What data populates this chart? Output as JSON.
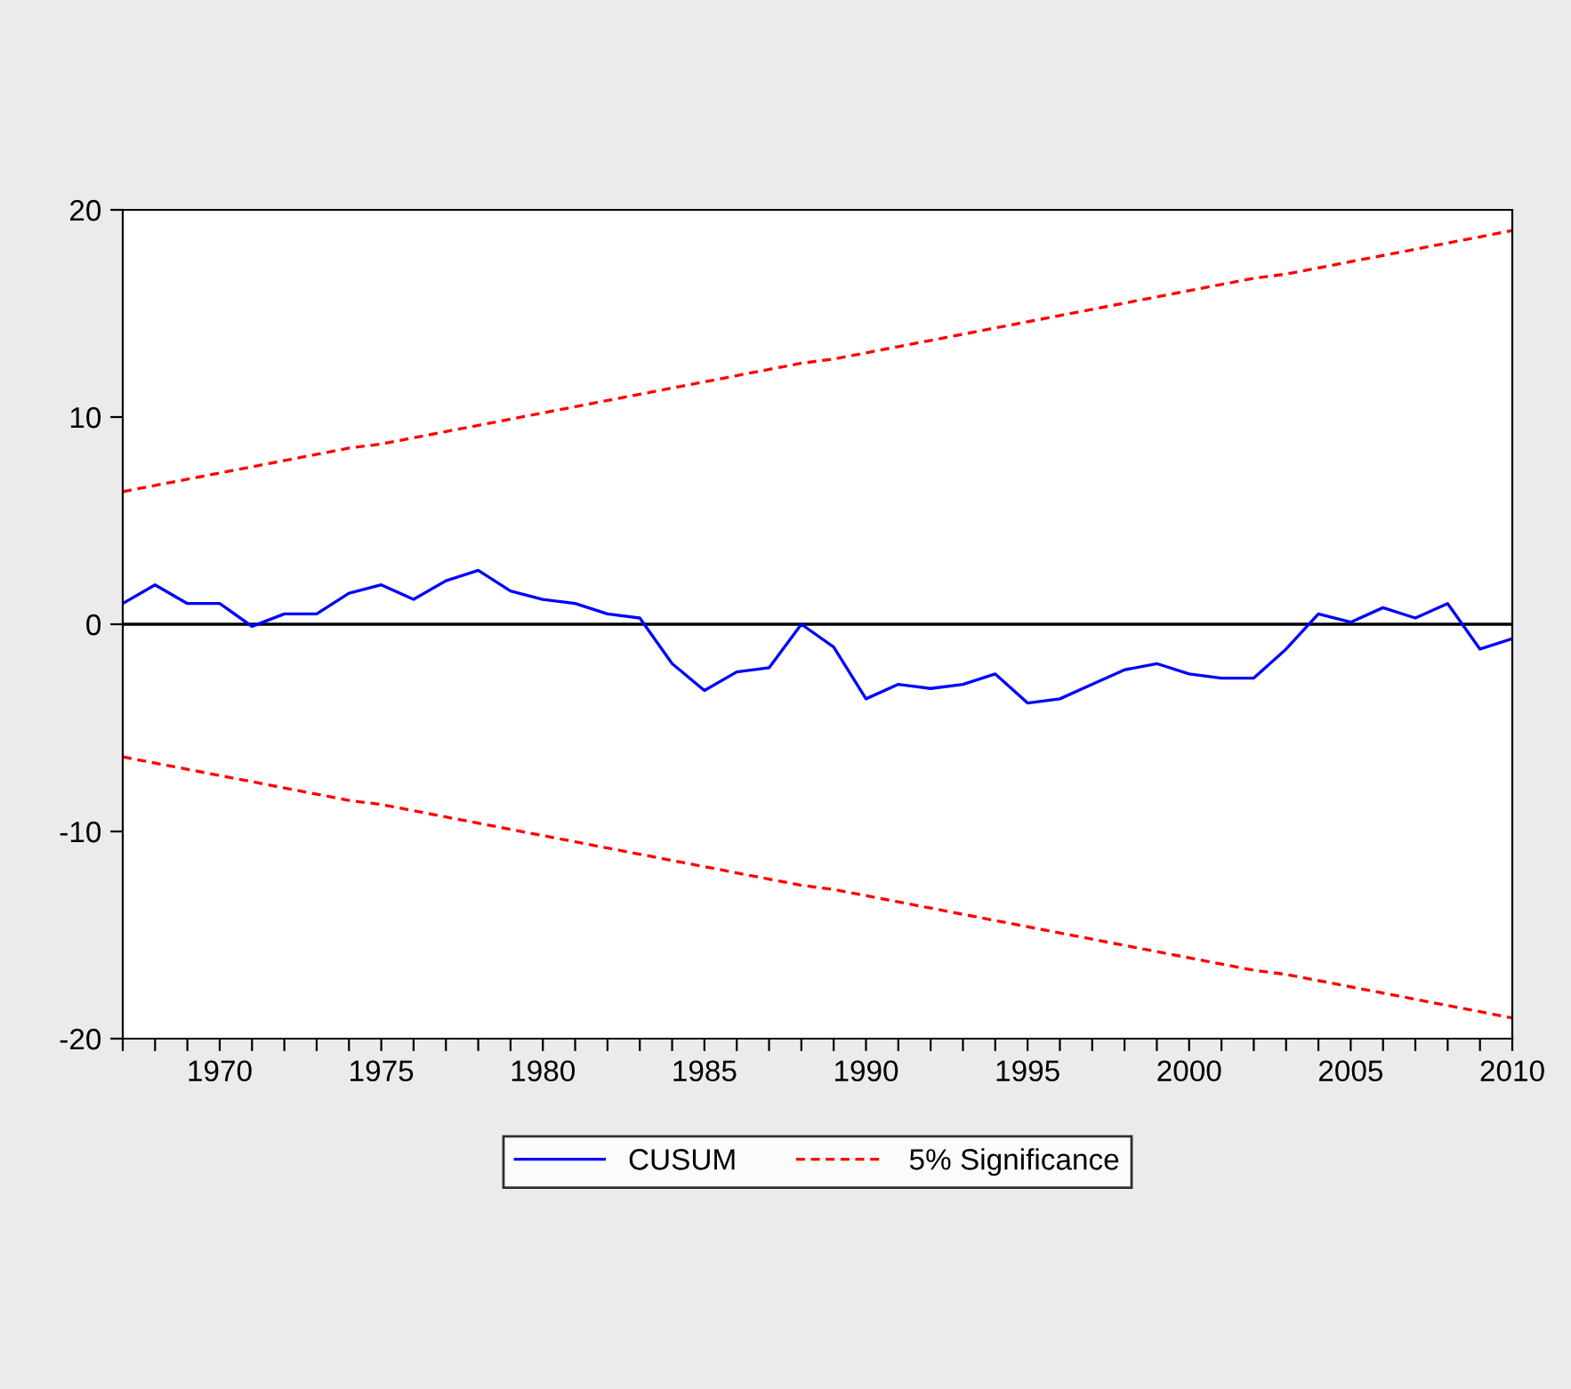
{
  "chart_data": {
    "type": "line",
    "x": [
      1967,
      1968,
      1969,
      1970,
      1971,
      1972,
      1973,
      1974,
      1975,
      1976,
      1977,
      1978,
      1979,
      1980,
      1981,
      1982,
      1983,
      1984,
      1985,
      1986,
      1987,
      1988,
      1989,
      1990,
      1991,
      1992,
      1993,
      1994,
      1995,
      1996,
      1997,
      1998,
      1999,
      2000,
      2001,
      2002,
      2003,
      2004,
      2005,
      2006,
      2007,
      2008,
      2009,
      2010
    ],
    "series": [
      {
        "name": "CUSUM",
        "color": "#0000ff",
        "line_style": "solid",
        "values": [
          1.0,
          1.9,
          1.0,
          1.0,
          -0.1,
          0.5,
          0.5,
          1.5,
          1.9,
          1.2,
          2.1,
          2.6,
          1.6,
          1.2,
          1.0,
          0.5,
          0.3,
          -1.9,
          -3.2,
          -2.3,
          -2.1,
          0.0,
          -1.1,
          -3.6,
          -2.9,
          -3.1,
          -2.9,
          -2.4,
          -3.8,
          -3.6,
          -2.9,
          -2.2,
          -1.9,
          -2.4,
          -2.6,
          -2.6,
          -1.2,
          0.5,
          0.1,
          0.8,
          0.3,
          1.0,
          -1.2,
          -0.7
        ]
      },
      {
        "name": "5% Significance",
        "color": "#ff0000",
        "line_style": "dashed",
        "values": [
          6.4,
          6.7,
          7.0,
          7.3,
          7.6,
          7.9,
          8.2,
          8.5,
          8.7,
          9.0,
          9.3,
          9.6,
          9.9,
          10.2,
          10.5,
          10.8,
          11.1,
          11.4,
          11.7,
          12.0,
          12.3,
          12.6,
          12.8,
          13.1,
          13.4,
          13.7,
          14.0,
          14.3,
          14.6,
          14.9,
          15.2,
          15.5,
          15.8,
          16.1,
          16.4,
          16.7,
          16.9,
          17.2,
          17.5,
          17.8,
          18.1,
          18.4,
          18.7,
          19.0
        ]
      },
      {
        "color": "#ff0000",
        "line_style": "dashed",
        "values": [
          -6.4,
          -6.7,
          -7.0,
          -7.3,
          -7.6,
          -7.9,
          -8.2,
          -8.5,
          -8.7,
          -9.0,
          -9.3,
          -9.6,
          -9.9,
          -10.2,
          -10.5,
          -10.8,
          -11.1,
          -11.4,
          -11.7,
          -12.0,
          -12.3,
          -12.6,
          -12.8,
          -13.1,
          -13.4,
          -13.7,
          -14.0,
          -14.3,
          -14.6,
          -14.9,
          -15.2,
          -15.5,
          -15.8,
          -16.1,
          -16.4,
          -16.7,
          -16.9,
          -17.2,
          -17.5,
          -17.8,
          -18.1,
          -18.4,
          -18.7,
          -19.0
        ]
      }
    ],
    "xlim": [
      1967,
      2010
    ],
    "xticks": [
      {
        "value": 1967,
        "label": null
      },
      {
        "value": 1968,
        "label": null
      },
      {
        "value": 1969,
        "label": null
      },
      1970,
      {
        "value": 1971,
        "label": null
      },
      {
        "value": 1972,
        "label": null
      },
      {
        "value": 1973,
        "label": null
      },
      {
        "value": 1974,
        "label": null
      },
      1975,
      {
        "value": 1976,
        "label": null
      },
      {
        "value": 1977,
        "label": null
      },
      {
        "value": 1978,
        "label": null
      },
      {
        "value": 1979,
        "label": null
      },
      1980,
      {
        "value": 1981,
        "label": null
      },
      {
        "value": 1982,
        "label": null
      },
      {
        "value": 1983,
        "label": null
      },
      {
        "value": 1984,
        "label": null
      },
      1985,
      {
        "value": 1986,
        "label": null
      },
      {
        "value": 1987,
        "label": null
      },
      {
        "value": 1988,
        "label": null
      },
      {
        "value": 1989,
        "label": null
      },
      1990,
      {
        "value": 1991,
        "label": null
      },
      {
        "value": 1992,
        "label": null
      },
      {
        "value": 1993,
        "label": null
      },
      {
        "value": 1994,
        "label": null
      },
      1995,
      {
        "value": 1996,
        "label": null
      },
      {
        "value": 1997,
        "label": null
      },
      {
        "value": 1998,
        "label": null
      },
      {
        "value": 1999,
        "label": null
      },
      2000,
      {
        "value": 2001,
        "label": null
      },
      {
        "value": 2002,
        "label": null
      },
      {
        "value": 2003,
        "label": null
      },
      {
        "value": 2004,
        "label": null
      },
      2005,
      {
        "value": 2006,
        "label": null
      },
      {
        "value": 2007,
        "label": null
      },
      {
        "value": 2008,
        "label": null
      },
      {
        "value": 2009,
        "label": null
      },
      2010
    ],
    "ylim": [
      -20,
      20
    ],
    "yticks": [
      -20,
      -10,
      0,
      10,
      20
    ],
    "ref_lines": [
      {
        "axis": "y",
        "value": 0,
        "color": "#000000",
        "line_style": "solid"
      }
    ],
    "grid": false,
    "legend": "bottom",
    "marker": "none"
  }
}
